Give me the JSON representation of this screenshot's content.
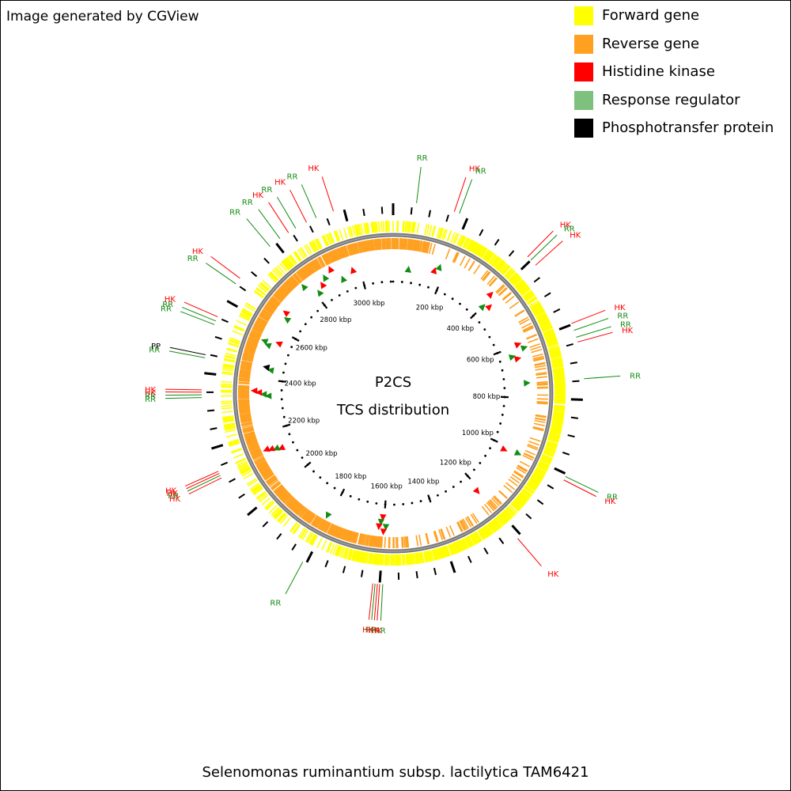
{
  "credit": "Image generated by CGView",
  "title_line1": "P2CS",
  "title_line2": "TCS distribution",
  "genome_name": "Selenomonas ruminantium subsp. lactilytica TAM6421",
  "legend": [
    {
      "label": "Forward gene",
      "color": "#ffff00"
    },
    {
      "label": "Reverse gene",
      "color": "#ffa020"
    },
    {
      "label": "Histidine kinase",
      "color": "#ff0000"
    },
    {
      "label": "Response regulator",
      "color": "#7ec07e"
    },
    {
      "label": "Phosphotransfer protein",
      "color": "#000000"
    }
  ],
  "genome": {
    "length_kbp": 3130,
    "tick_labels": [
      "3000 kbp",
      "200 kbp",
      "400 kbp",
      "600 kbp",
      "800 kbp",
      "1000 kbp",
      "1200 kbp",
      "1400 kbp",
      "1600 kbp",
      "1800 kbp",
      "2000 kbp",
      "2200 kbp",
      "2400 kbp",
      "2600 kbp",
      "2800 kbp"
    ],
    "tick_positions_kbp": [
      3000,
      200,
      400,
      600,
      800,
      1000,
      1200,
      1400,
      1600,
      1800,
      2000,
      2200,
      2400,
      2600,
      2800
    ]
  },
  "chart_data": {
    "type": "circular-genome-map",
    "title": "P2CS TCS distribution",
    "features": [
      {
        "label": "RR",
        "type": "RR",
        "pos_kbp": 61
      },
      {
        "label": "HK",
        "type": "HK",
        "pos_kbp": 162
      },
      {
        "label": "RR",
        "type": "RR",
        "pos_kbp": 176
      },
      {
        "label": "HK",
        "type": "HK",
        "pos_kbp": 388
      },
      {
        "label": "RR",
        "type": "RR",
        "pos_kbp": 400
      },
      {
        "label": "HK",
        "type": "HK",
        "pos_kbp": 418
      },
      {
        "label": "HK",
        "type": "HK",
        "pos_kbp": 597
      },
      {
        "label": "RR",
        "type": "RR",
        "pos_kbp": 616
      },
      {
        "label": "RR",
        "type": "RR",
        "pos_kbp": 635
      },
      {
        "label": "HK",
        "type": "HK",
        "pos_kbp": 648
      },
      {
        "label": "RR",
        "type": "RR",
        "pos_kbp": 745
      },
      {
        "label": "RR",
        "type": "RR",
        "pos_kbp": 1007
      },
      {
        "label": "HK",
        "type": "HK",
        "pos_kbp": 1017
      },
      {
        "label": "HK",
        "type": "HK",
        "pos_kbp": 1212
      },
      {
        "label": "RR",
        "type": "RR",
        "pos_kbp": 1592
      },
      {
        "label": "HK",
        "type": "HK",
        "pos_kbp": 1600
      },
      {
        "label": "HK",
        "type": "HK",
        "pos_kbp": 1606
      },
      {
        "label": "RR",
        "type": "RR",
        "pos_kbp": 1612
      },
      {
        "label": "HK",
        "type": "HK",
        "pos_kbp": 1618
      },
      {
        "label": "RR",
        "type": "RR",
        "pos_kbp": 1810
      },
      {
        "label": "HK",
        "type": "HK",
        "pos_kbp": 2119
      },
      {
        "label": "RR",
        "type": "RR",
        "pos_kbp": 2126
      },
      {
        "label": "HK",
        "type": "HK",
        "pos_kbp": 2132
      },
      {
        "label": "HK",
        "type": "HK",
        "pos_kbp": 2138
      },
      {
        "label": "RR",
        "type": "RR",
        "pos_kbp": 2336
      },
      {
        "label": "RR",
        "type": "RR",
        "pos_kbp": 2343
      },
      {
        "label": "HK",
        "type": "HK",
        "pos_kbp": 2350
      },
      {
        "label": "HK",
        "type": "HK",
        "pos_kbp": 2356
      },
      {
        "label": "RR",
        "type": "RR",
        "pos_kbp": 2440
      },
      {
        "label": "PP",
        "type": "PP",
        "pos_kbp": 2448
      },
      {
        "label": "RR",
        "type": "RR",
        "pos_kbp": 2530
      },
      {
        "label": "RR",
        "type": "RR",
        "pos_kbp": 2540
      },
      {
        "label": "HK",
        "type": "HK",
        "pos_kbp": 2552
      },
      {
        "label": "RR",
        "type": "RR",
        "pos_kbp": 2650
      },
      {
        "label": "HK",
        "type": "HK",
        "pos_kbp": 2668
      },
      {
        "label": "RR",
        "type": "RR",
        "pos_kbp": 2782
      },
      {
        "label": "RR",
        "type": "RR",
        "pos_kbp": 2815
      },
      {
        "label": "HK",
        "type": "HK",
        "pos_kbp": 2842
      },
      {
        "label": "RR",
        "type": "RR",
        "pos_kbp": 2864
      },
      {
        "label": "HK",
        "type": "HK",
        "pos_kbp": 2896
      },
      {
        "label": "RR",
        "type": "RR",
        "pos_kbp": 2924
      },
      {
        "label": "HK",
        "type": "HK",
        "pos_kbp": 2972
      }
    ]
  }
}
